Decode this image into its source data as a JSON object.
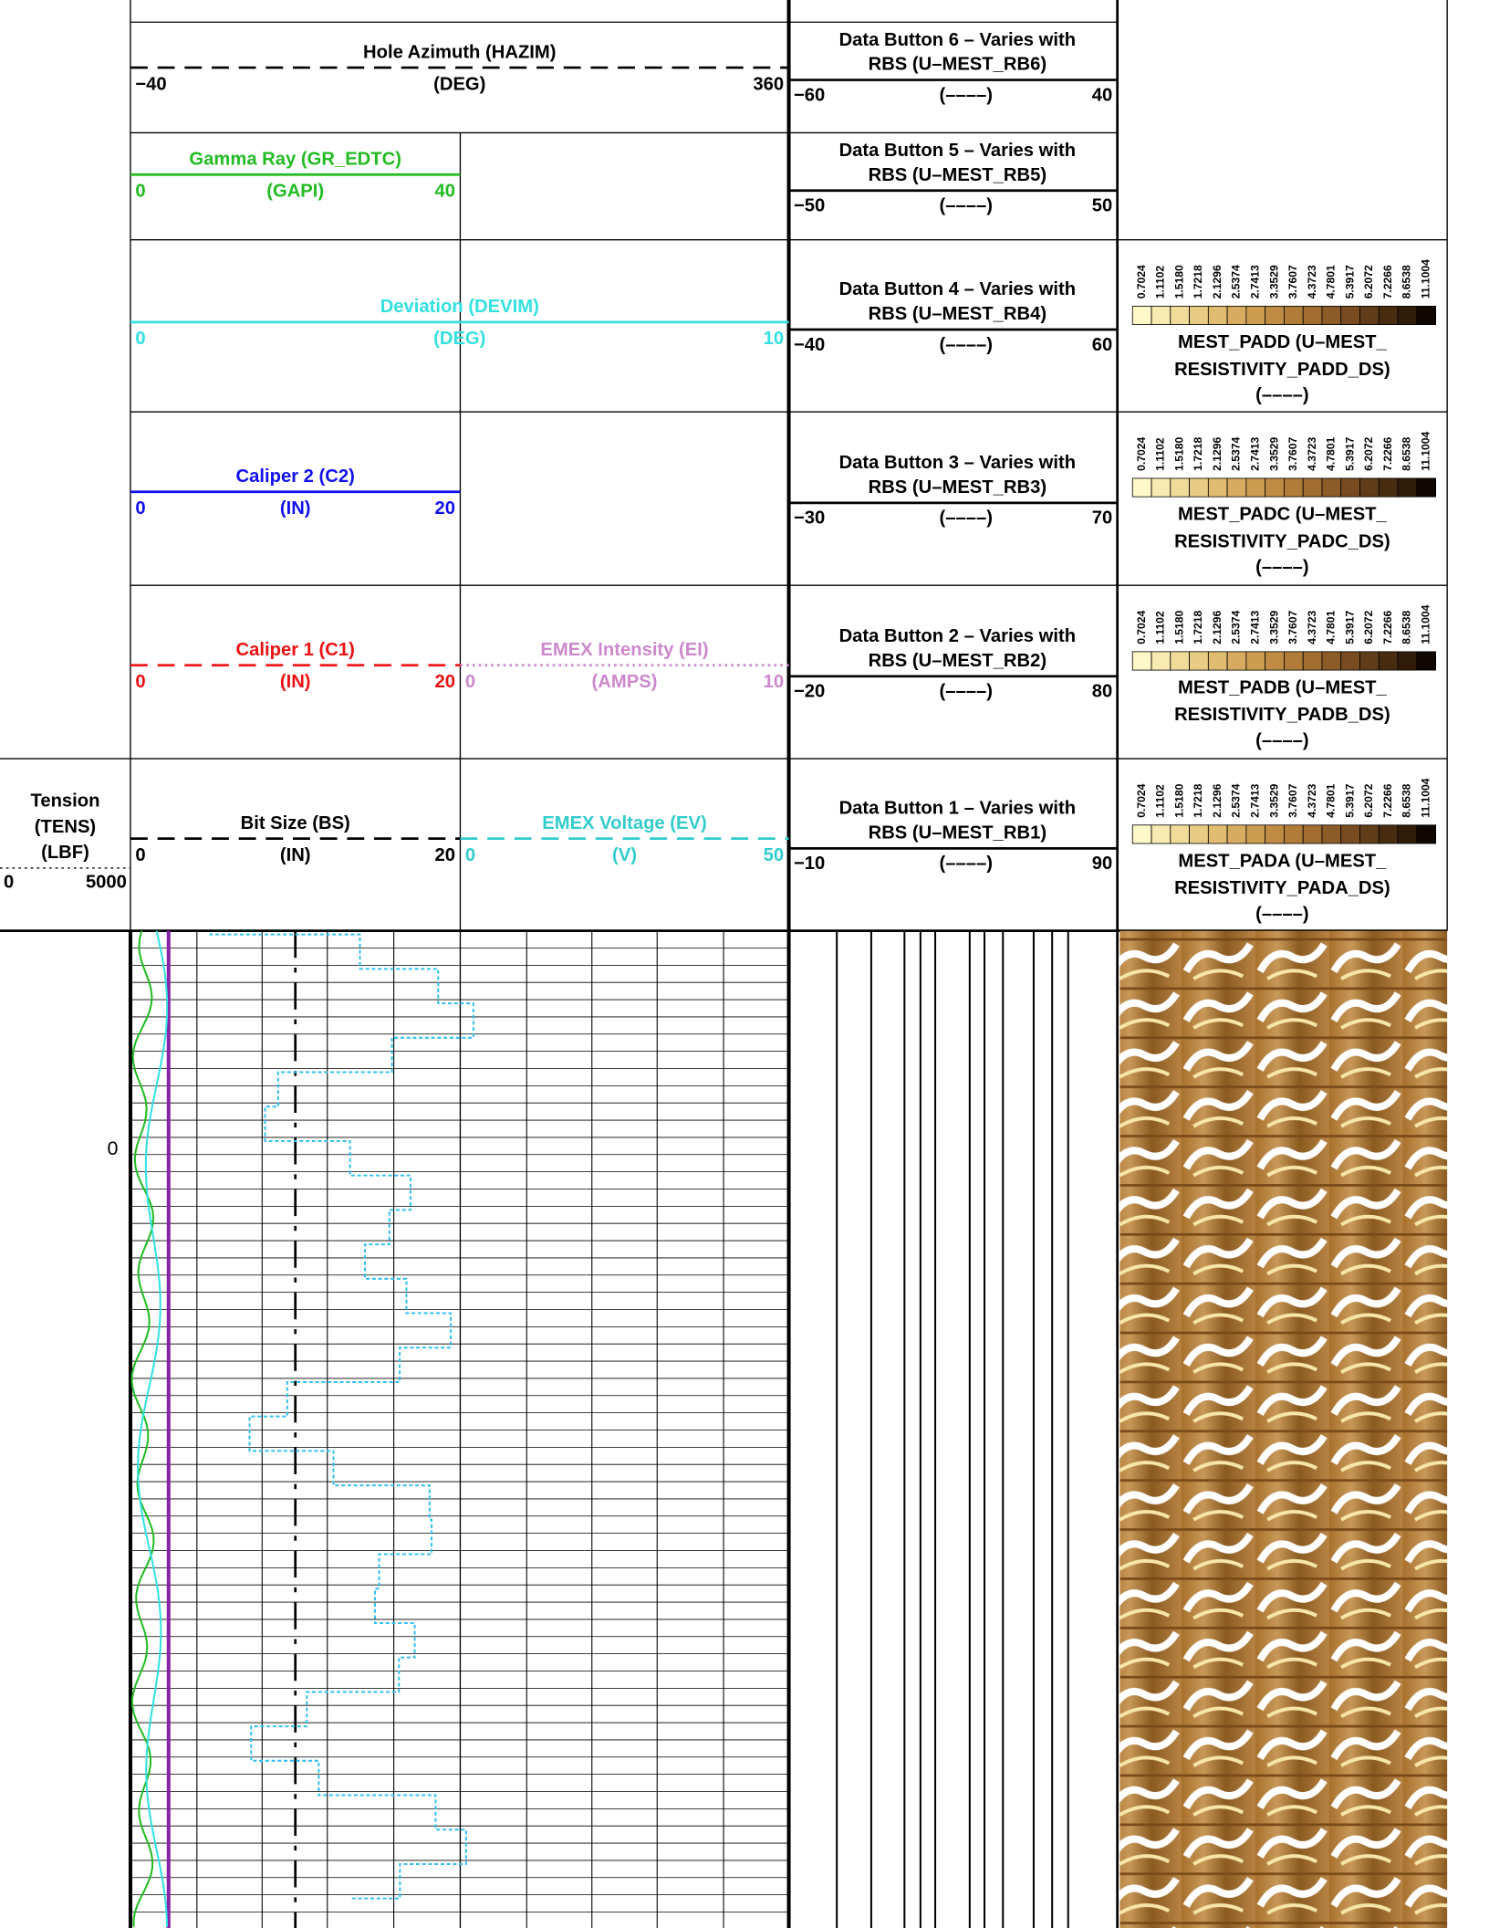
{
  "tension": {
    "name": "Tension",
    "mnemonic": "(TENS)",
    "unit": "(LBF)",
    "min": "0",
    "max": "5000"
  },
  "curves": [
    {
      "name": "Hole Azimuth (HAZIM)",
      "unit": "(DEG)",
      "min": "−40",
      "max": "360",
      "color": "#000000",
      "style": "dashed"
    },
    {
      "name": "Gamma Ray (GR_EDTC)",
      "unit": "(GAPI)",
      "min": "0",
      "max": "40",
      "color": "#22bb22",
      "style": "solid"
    },
    {
      "name": "Deviation (DEVIM)",
      "unit": "(DEG)",
      "min": "0",
      "max": "10",
      "color": "#33e0e0",
      "style": "solid"
    },
    {
      "name": "Caliper 2 (C2)",
      "unit": "(IN)",
      "min": "0",
      "max": "20",
      "color": "#1111ee",
      "style": "solid"
    },
    {
      "name": "Caliper 1 (C1)",
      "unit": "(IN)",
      "min": "0",
      "max": "20",
      "color": "#ee1111",
      "style": "dashed"
    },
    {
      "name": "EMEX Intensity (EI)",
      "unit": "(AMPS)",
      "min": "0",
      "max": "10",
      "color": "#cc88cc",
      "style": "dotted"
    },
    {
      "name": "Bit Size (BS)",
      "unit": "(IN)",
      "min": "0",
      "max": "20",
      "color": "#000000",
      "style": "dashed"
    },
    {
      "name": "EMEX Voltage (EV)",
      "unit": "(V)",
      "min": "0",
      "max": "50",
      "color": "#33cccc",
      "style": "dashed"
    }
  ],
  "data_buttons": [
    {
      "title": [
        "Data Button 6 – Varies with",
        "RBS (U–MEST_RB6)"
      ],
      "unit": "(––––)",
      "min": "−60",
      "max": "40"
    },
    {
      "title": [
        "Data Button 5 – Varies with",
        "RBS (U–MEST_RB5)"
      ],
      "unit": "(––––)",
      "min": "−50",
      "max": "50"
    },
    {
      "title": [
        "Data Button 4 – Varies with",
        "RBS (U–MEST_RB4)"
      ],
      "unit": "(––––)",
      "min": "−40",
      "max": "60"
    },
    {
      "title": [
        "Data Button 3 – Varies with",
        "RBS (U–MEST_RB3)"
      ],
      "unit": "(––––)",
      "min": "−30",
      "max": "70"
    },
    {
      "title": [
        "Data Button 2 – Varies with",
        "RBS (U–MEST_RB2)"
      ],
      "unit": "(––––)",
      "min": "−20",
      "max": "80"
    },
    {
      "title": [
        "Data Button 1 – Varies with",
        "RBS (U–MEST_RB1)"
      ],
      "unit": "(––––)",
      "min": "−10",
      "max": "90"
    }
  ],
  "images": [
    {
      "title": [
        "MEST_PADD (U–MEST_",
        "RESISTIVITY_PADD_DS)"
      ],
      "unit": "(––––)"
    },
    {
      "title": [
        "MEST_PADC (U–MEST_",
        "RESISTIVITY_PADC_DS)"
      ],
      "unit": "(––––)"
    },
    {
      "title": [
        "MEST_PADB (U–MEST_",
        "RESISTIVITY_PADB_DS)"
      ],
      "unit": "(––––)"
    },
    {
      "title": [
        "MEST_PADA (U–MEST_",
        "RESISTIVITY_PADA_DS)"
      ],
      "unit": "(––––)"
    }
  ],
  "image_scale": [
    "0.7024",
    "1.1102",
    "1.5180",
    "1.7218",
    "2.1296",
    "2.5374",
    "2.7413",
    "3.3529",
    "3.7607",
    "4.3723",
    "4.7801",
    "5.3917",
    "6.2072",
    "7.2266",
    "8.6538",
    "11.1004"
  ],
  "depth_labels": [
    "0"
  ]
}
